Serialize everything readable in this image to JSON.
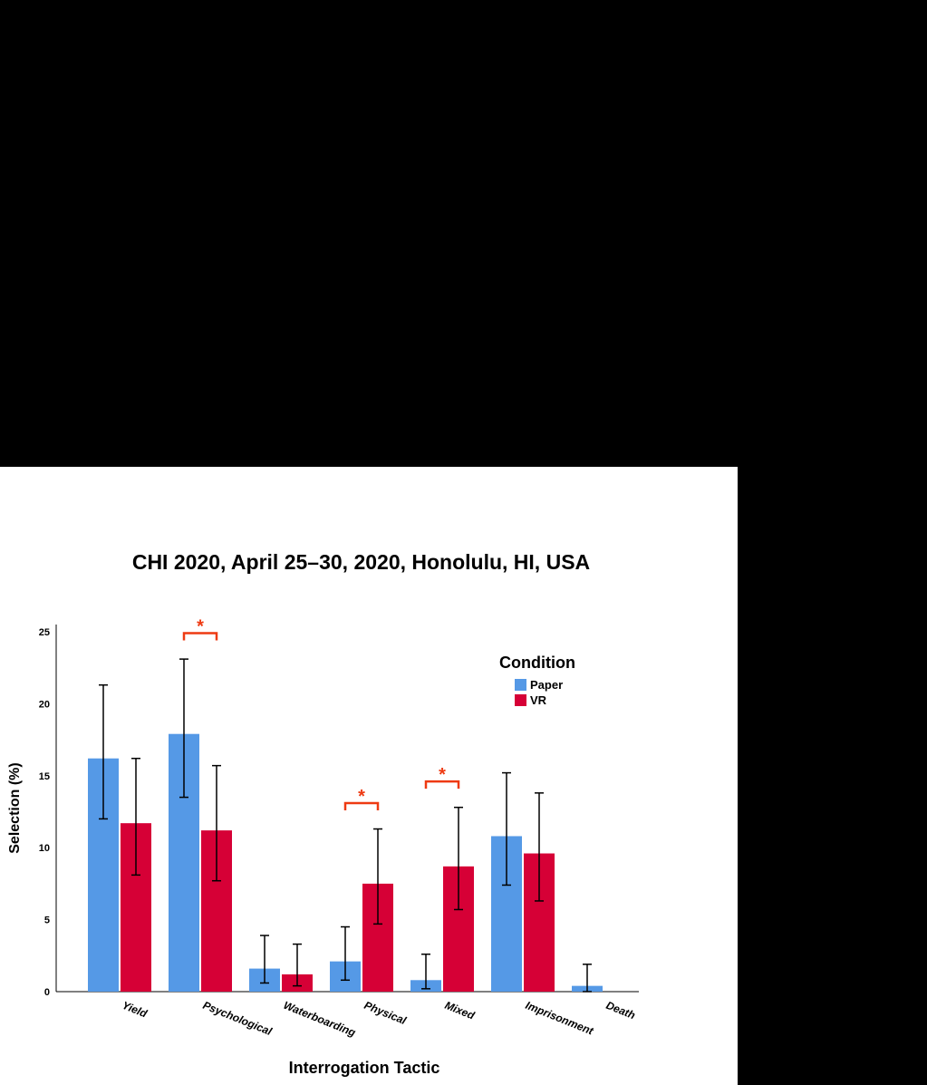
{
  "page": {
    "header_text": "CHI 2020, April 25–30, 2020, Honolulu, HI, USA"
  },
  "colors": {
    "paper": "#5599e6",
    "vr": "#d60036",
    "significance": "#ee3a12",
    "background": "#000000"
  },
  "chart_data": {
    "type": "bar",
    "title": "",
    "xlabel": "Interrogation Tactic",
    "ylabel": "Selection (%)",
    "ylim": [
      0,
      25.5
    ],
    "yticks": [
      0,
      5,
      10,
      15,
      20,
      25
    ],
    "grid": false,
    "legend": {
      "title": "Condition",
      "placement": "top-right"
    },
    "categories": [
      "Yield",
      "Psychological",
      "Waterboarding",
      "Physical",
      "Mixed",
      "Imprisonment",
      "Death"
    ],
    "series": [
      {
        "name": "Paper",
        "color": "#5599e6",
        "values": [
          16.2,
          17.9,
          1.6,
          2.1,
          0.8,
          10.8,
          0.4
        ],
        "ci_low": [
          12.0,
          13.5,
          0.6,
          0.8,
          0.2,
          7.4,
          0.0
        ],
        "ci_high": [
          21.3,
          23.1,
          3.9,
          4.5,
          2.6,
          15.2,
          1.9
        ]
      },
      {
        "name": "VR",
        "color": "#d60036",
        "values": [
          11.7,
          11.2,
          1.2,
          7.5,
          8.7,
          9.6,
          0.0
        ],
        "ci_low": [
          8.1,
          7.7,
          0.4,
          4.7,
          5.7,
          6.3,
          0.0
        ],
        "ci_high": [
          16.2,
          15.7,
          3.3,
          11.3,
          12.8,
          13.8,
          0.0
        ]
      }
    ],
    "annotations": [
      {
        "category": "Psychological",
        "label": "*",
        "bracket_y": 24.9
      },
      {
        "category": "Physical",
        "label": "*",
        "bracket_y": 13.1
      },
      {
        "category": "Mixed",
        "label": "*",
        "bracket_y": 14.6
      }
    ]
  }
}
